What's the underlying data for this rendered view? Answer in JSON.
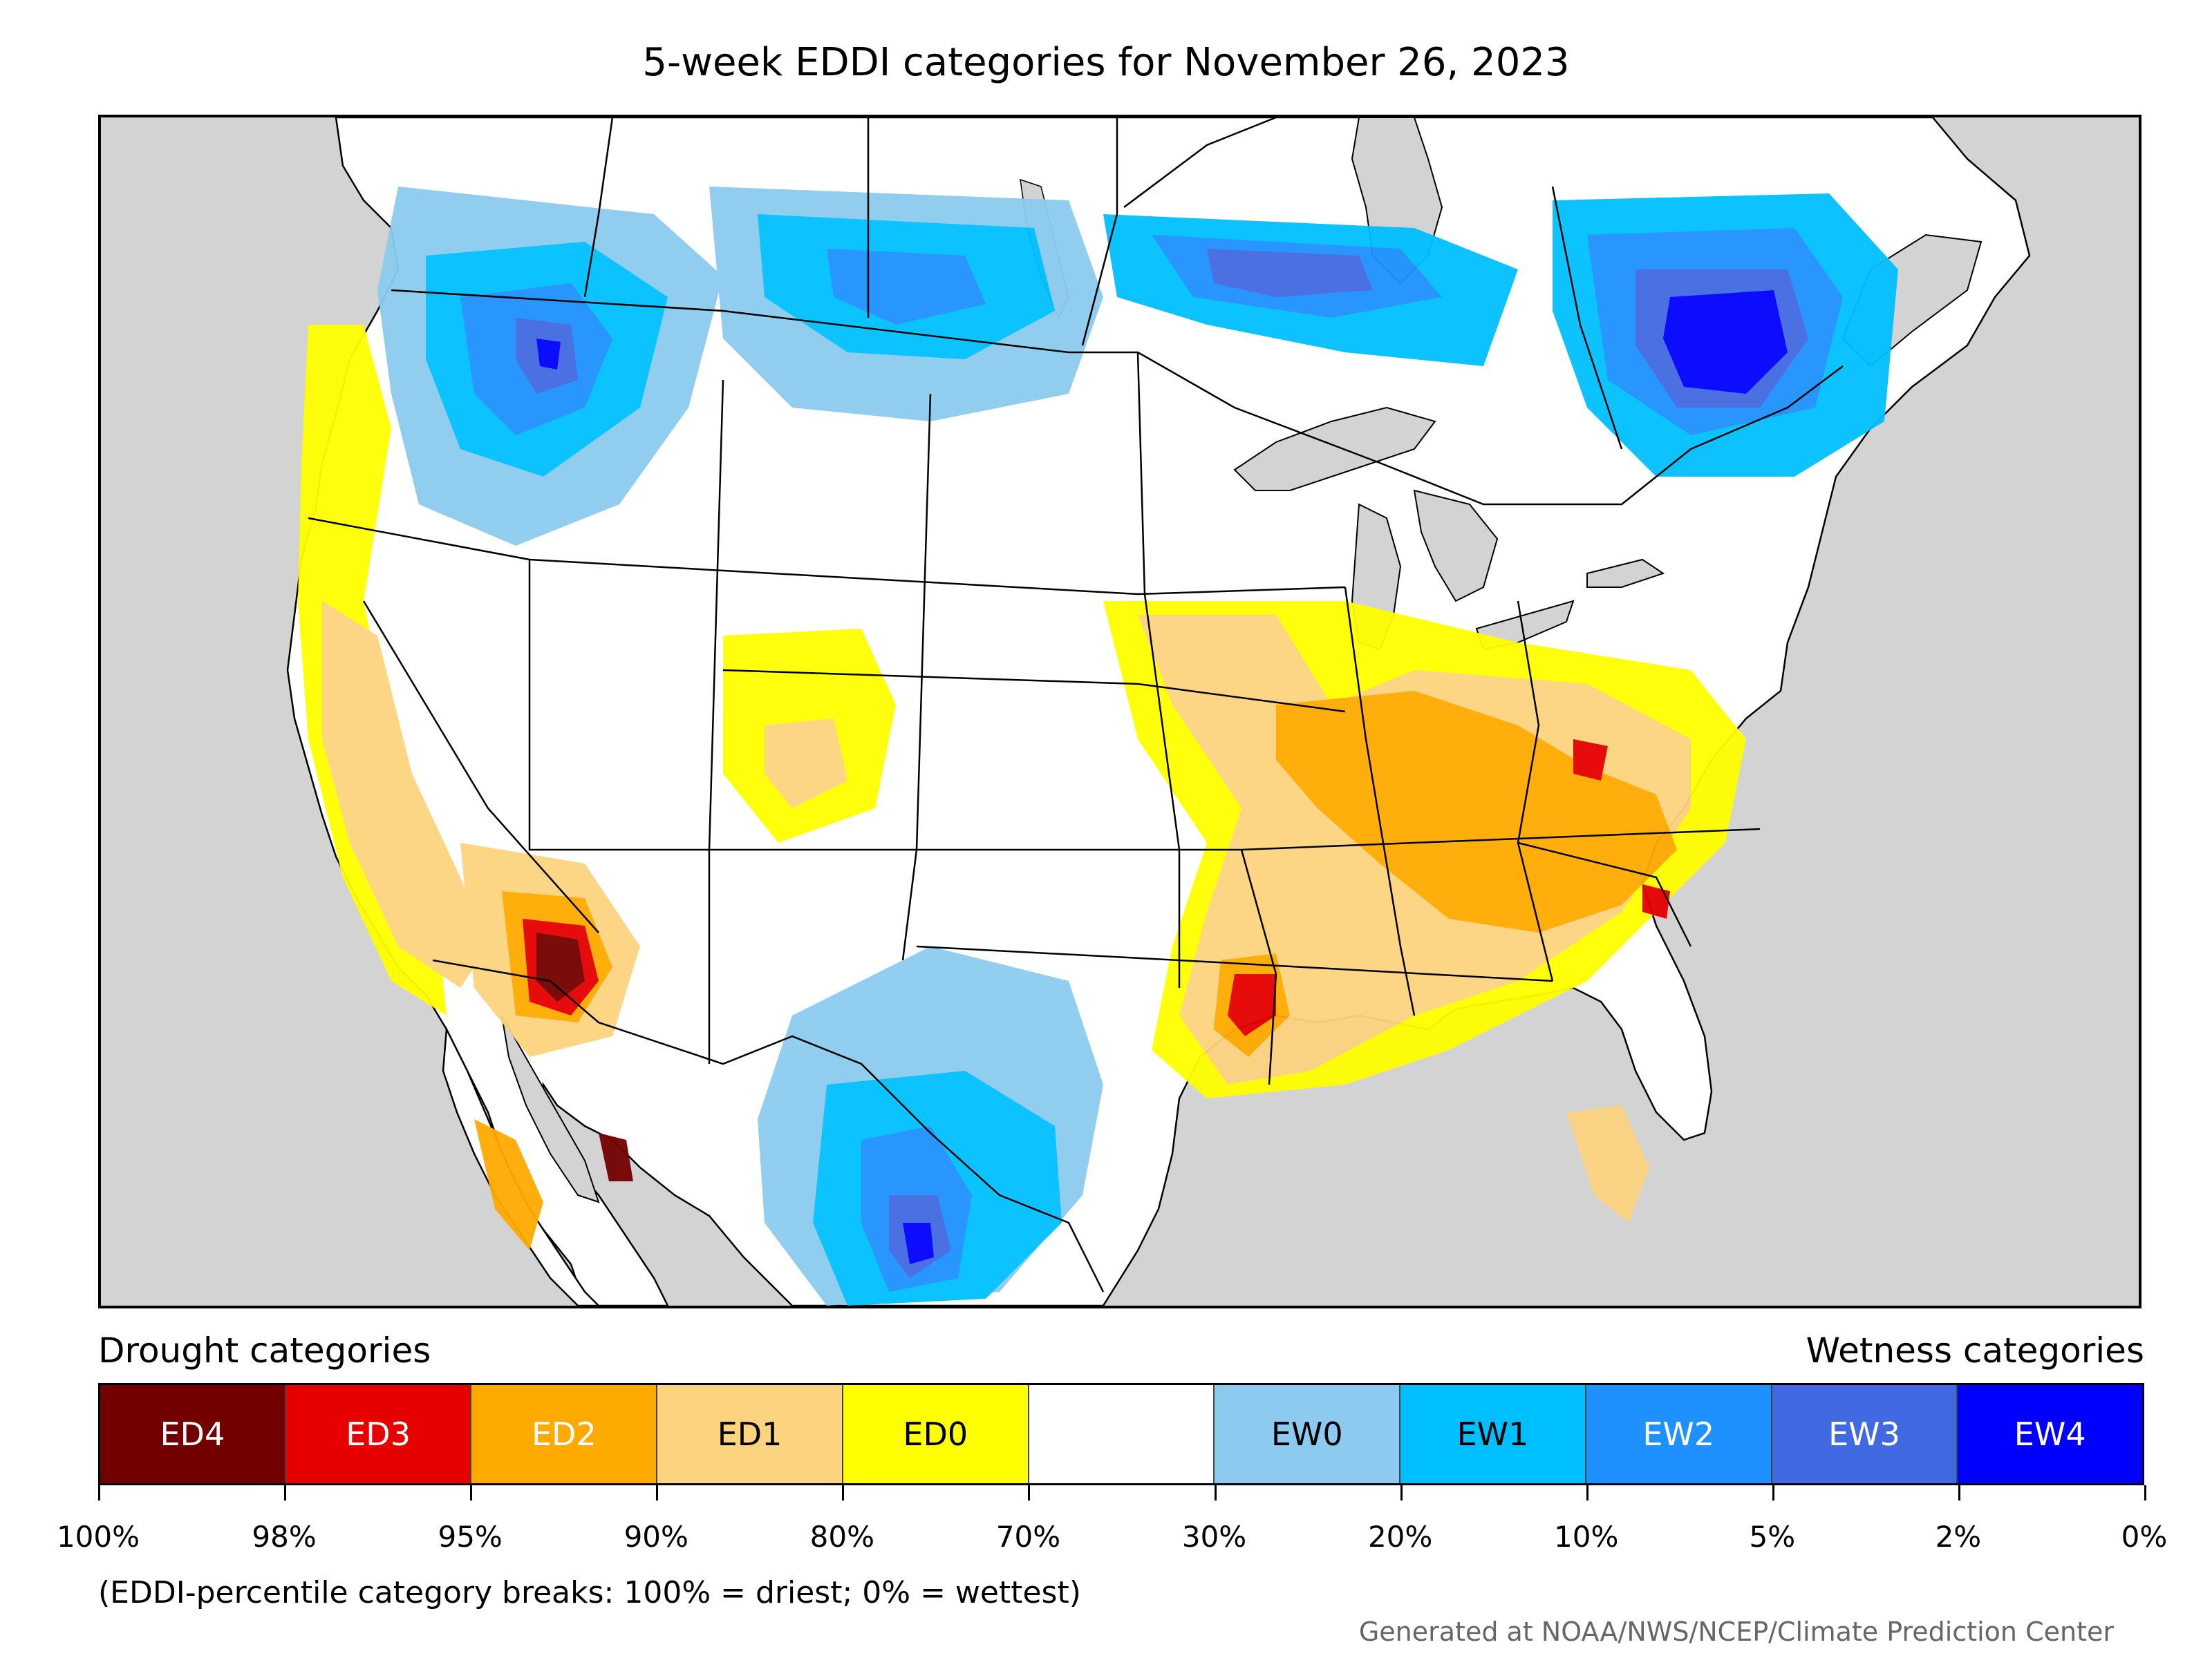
{
  "title": "5-week EDDI categories for November 26, 2023",
  "legend": {
    "drought_label": "Drought categories",
    "wetness_label": "Wetness categories",
    "categories": [
      {
        "label": "ED4",
        "color": "#730000",
        "text_color": "#ffffff"
      },
      {
        "label": "ED3",
        "color": "#e60000",
        "text_color": "#ffffff"
      },
      {
        "label": "ED2",
        "color": "#ffaa00",
        "text_color": "#ffffff"
      },
      {
        "label": "ED1",
        "color": "#fcd37f",
        "text_color": "#000000"
      },
      {
        "label": "ED0",
        "color": "#ffff00",
        "text_color": "#000000"
      },
      {
        "label": "",
        "color": "#ffffff",
        "text_color": "#000000"
      },
      {
        "label": "EW0",
        "color": "#8ccbef",
        "text_color": "#000000"
      },
      {
        "label": "EW1",
        "color": "#00bfff",
        "text_color": "#000000"
      },
      {
        "label": "EW2",
        "color": "#1e90ff",
        "text_color": "#ffffff"
      },
      {
        "label": "EW3",
        "color": "#4169e1",
        "text_color": "#ffffff"
      },
      {
        "label": "EW4",
        "color": "#0000ff",
        "text_color": "#ffffff"
      }
    ],
    "tick_labels": [
      "100%",
      "98%",
      "95%",
      "90%",
      "80%",
      "70%",
      "30%",
      "20%",
      "10%",
      "5%",
      "2%",
      "0%"
    ]
  },
  "note": "(EDDI-percentile category breaks: 100% = driest; 0% = wettest)",
  "credit": "Generated at NOAA/NWS/NCEP/Climate Prediction Center",
  "colors": {
    "ocean": "#d3d3d3",
    "land": "#ffffff",
    "border": "#000000"
  }
}
